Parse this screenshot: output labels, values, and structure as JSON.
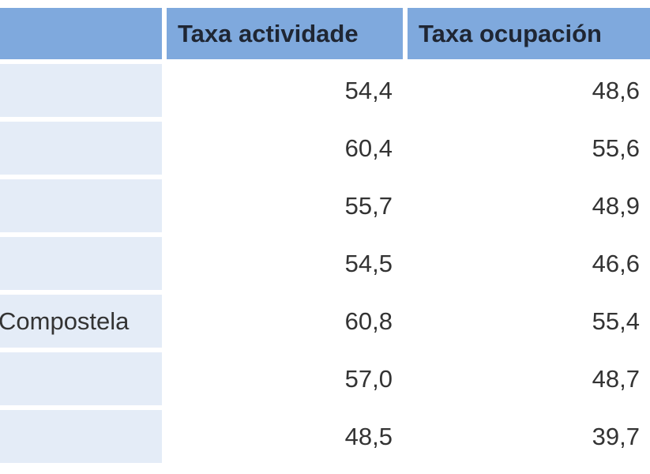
{
  "table": {
    "columns": [
      "Taxa actividade",
      "Taxa ocupación"
    ],
    "rows": [
      {
        "values": [
          "54,4",
          "48,6"
        ]
      },
      {
        "values": [
          "60,4",
          "55,6"
        ]
      },
      {
        "values": [
          "55,7",
          "48,9"
        ]
      },
      {
        "values": [
          "54,5",
          "46,6"
        ]
      },
      {
        "place": "Compostela",
        "values": [
          "60,8",
          "55,4"
        ]
      },
      {
        "values": [
          "57,0",
          "48,7"
        ]
      },
      {
        "values": [
          "48,5",
          "39,7"
        ]
      }
    ]
  }
}
